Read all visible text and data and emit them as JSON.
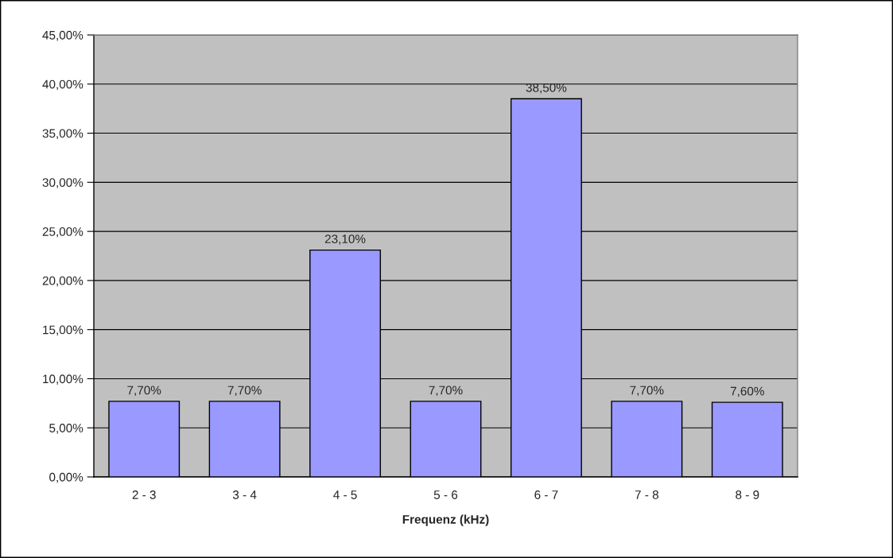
{
  "chart_data": {
    "type": "bar",
    "xlabel": "Frequenz (kHz)",
    "categories": [
      "2 - 3",
      "3 - 4",
      "4 - 5",
      "5 - 6",
      "6 - 7",
      "7 - 8",
      "8 - 9"
    ],
    "values": [
      7.7,
      7.7,
      23.1,
      7.7,
      38.5,
      7.7,
      7.6
    ],
    "value_labels": [
      "7,70%",
      "7,70%",
      "23,10%",
      "7,70%",
      "38,50%",
      "7,70%",
      "7,60%"
    ],
    "color": "#9999ff",
    "ylim": [
      0,
      45
    ],
    "yticks": [
      {
        "value": 0,
        "label": "0,00%"
      },
      {
        "value": 5,
        "label": "5,00%"
      },
      {
        "value": 10,
        "label": "10,00%"
      },
      {
        "value": 15,
        "label": "15,00%"
      },
      {
        "value": 20,
        "label": "20,00%"
      },
      {
        "value": 25,
        "label": "25,00%"
      },
      {
        "value": 30,
        "label": "30,00%"
      },
      {
        "value": 35,
        "label": "35,00%"
      },
      {
        "value": 40,
        "label": "40,00%"
      },
      {
        "value": 45,
        "label": "45,00%"
      }
    ],
    "grid": "y",
    "legend": false
  }
}
